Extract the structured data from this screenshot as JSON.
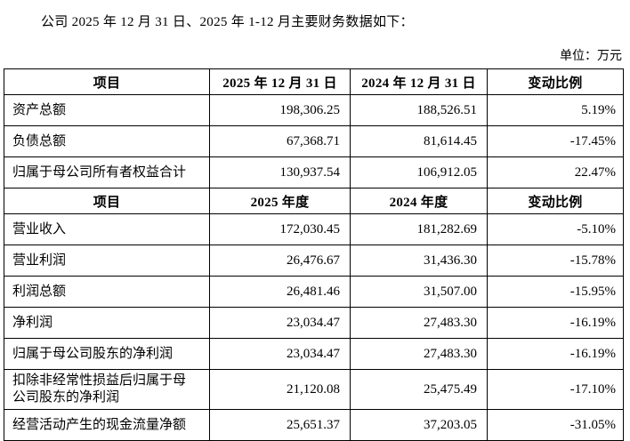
{
  "page": {
    "title": "公司 2025 年 12 月 31 日、2025 年 1-12 月主要财务数据如下：",
    "unit_label": "单位：万元"
  },
  "table": {
    "sections": [
      {
        "headers": [
          "项目",
          "2025 年 12 月 31 日",
          "2024 年 12 月 31 日",
          "变动比例"
        ],
        "rows": [
          [
            "资产总额",
            "198,306.25",
            "188,526.51",
            "5.19%"
          ],
          [
            "负债总额",
            "67,368.71",
            "81,614.45",
            "-17.45%"
          ],
          [
            "归属于母公司所有者权益合计",
            "130,937.54",
            "106,912.05",
            "22.47%"
          ]
        ]
      },
      {
        "headers": [
          "项目",
          "2025 年度",
          "2024 年度",
          "变动比例"
        ],
        "rows": [
          [
            "营业收入",
            "172,030.45",
            "181,282.69",
            "-5.10%"
          ],
          [
            "营业利润",
            "26,476.67",
            "31,436.30",
            "-15.78%"
          ],
          [
            "利润总额",
            "26,481.46",
            "31,507.00",
            "-15.95%"
          ],
          [
            "净利润",
            "23,034.47",
            "27,483.30",
            "-16.19%"
          ],
          [
            "归属于母公司股东的净利润",
            "23,034.47",
            "27,483.30",
            "-16.19%"
          ],
          [
            "扣除非经常性损益后归属于母公司股东的净利润",
            "21,120.08",
            "25,475.49",
            "-17.10%"
          ],
          [
            "经营活动产生的现金流量净额",
            "25,651.37",
            "37,203.05",
            "-31.05%"
          ]
        ]
      }
    ]
  }
}
